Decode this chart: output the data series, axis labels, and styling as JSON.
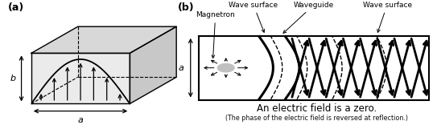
{
  "fig_width": 5.43,
  "fig_height": 1.66,
  "dpi": 100,
  "label_a": "(a)",
  "label_b": "(b)",
  "dim_a": "a",
  "dim_b": "b",
  "text_magnetron": "Magnetron",
  "text_waveguide": "Waveguide",
  "text_wave_surface_left": "Wave surface",
  "text_wave_surface_right": "Wave surface",
  "text_electric": "An electric field is a zero.",
  "text_phase": "(The phase of the electric field is reversed at reflection.)",
  "bg_color": "#ffffff",
  "line_color": "#000000",
  "face_top_color": "#d8d8d8",
  "face_right_color": "#c8c8c8",
  "face_front_color": "#ebebeb"
}
